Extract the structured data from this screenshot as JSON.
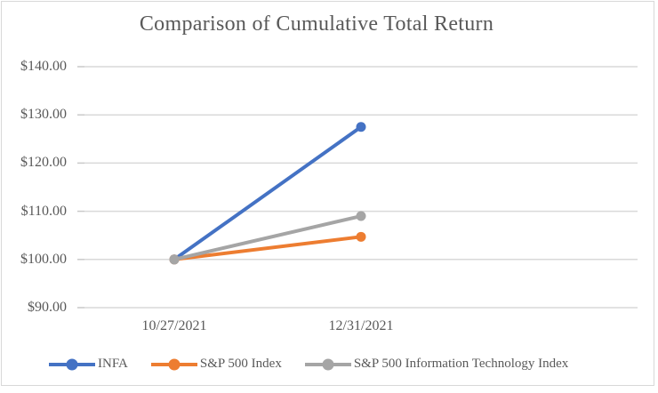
{
  "chart": {
    "title": "Comparison of Cumulative Total Return"
  },
  "chart_data": {
    "type": "line",
    "title": "Comparison of Cumulative Total Return",
    "categories": [
      "10/27/2021",
      "12/31/2021"
    ],
    "series": [
      {
        "name": "INFA",
        "values": [
          100.0,
          127.5
        ],
        "color": "#4472C4"
      },
      {
        "name": "S&P 500 Index",
        "values": [
          100.0,
          104.7
        ],
        "color": "#ED7D31"
      },
      {
        "name": "S&P 500 Information Technology Index",
        "values": [
          100.0,
          109.0
        ],
        "color": "#A5A5A5"
      }
    ],
    "ylim": [
      90,
      140
    ],
    "y_ticks": [
      90,
      100,
      110,
      120,
      130,
      140
    ],
    "y_tick_labels": [
      "$90.00",
      "$100.00",
      "$110.00",
      "$120.00",
      "$130.00",
      "$140.00"
    ],
    "grid": "horizontal-only",
    "gridline_color": "#D9D9D9",
    "tick_mark_color": "#C9C9C9",
    "text_color": "#595959",
    "marker": "circle",
    "legend_position": "bottom"
  }
}
